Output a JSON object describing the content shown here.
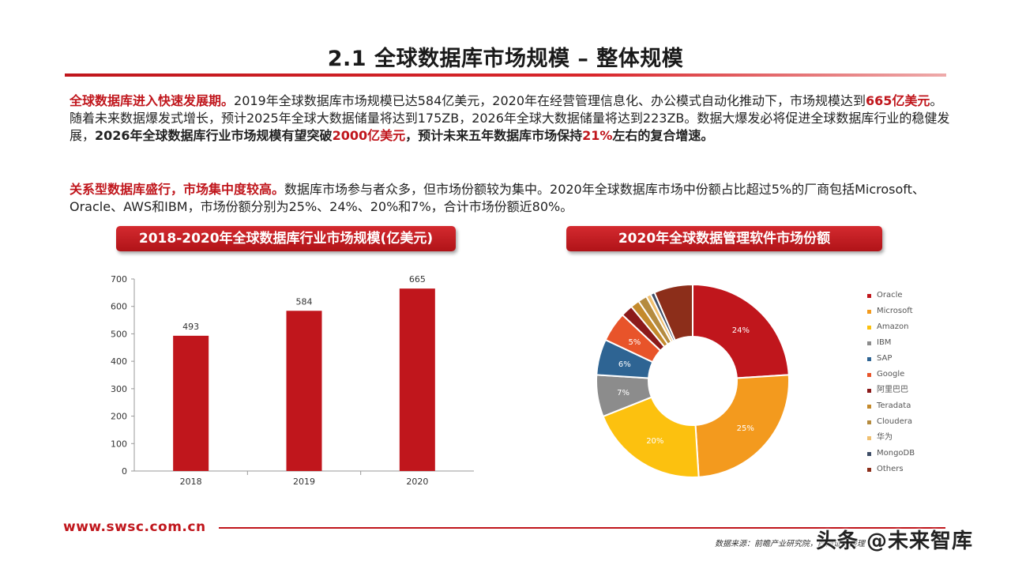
{
  "title": "2.1 全球数据库市场规模 – 整体规模",
  "para1": {
    "h": "全球数据库进入快速发展期。",
    "t1": "2019年全球数据库市场规模已达584亿美元，2020年在经营管理信息化、办公模式自动化推动下，市场规模达到",
    "r1": "665亿美元",
    "t2": "。随着未来数据爆发式增长，预计2025年全球大数据储量将达到175ZB，2026年全球大数据储量将达到223ZB。数据大爆发必将促进全球数据库行业的稳健发展，",
    "b1": "2026年全球数据库行业市场规模有望突破",
    "r2": "2000亿美元",
    "b2": "，预计未来五年数据库市场保持",
    "r3": "21%",
    "b3": "左右的复合增速。"
  },
  "para2": {
    "h": "关系型数据库盛行，市场集中度较高。",
    "t": "数据库市场参与者众多，但市场份额较为集中。2020年全球数据库市场中份额占比超过5%的厂商包括Microsoft、Oracle、AWS和IBM，市场份额分别为25%、24%、20%和7%，合计市场份额近80%。"
  },
  "banner_left": "2018-2020年全球数据库行业市场规模(亿美元)",
  "banner_right": "2020年全球数据管理软件市场份额",
  "chart_data": [
    {
      "type": "bar",
      "title": "2018-2020年全球数据库行业市场规模(亿美元)",
      "categories": [
        "2018",
        "2019",
        "2020"
      ],
      "values": [
        493,
        584,
        665
      ],
      "ylim": [
        0,
        700
      ],
      "yticks": [
        0,
        100,
        200,
        300,
        400,
        500,
        600,
        700
      ],
      "color": "#c0161c",
      "xlabel": "",
      "ylabel": ""
    },
    {
      "type": "pie",
      "title": "2020年全球数据管理软件市场份额",
      "labels": [
        "Oracle",
        "Microsoft",
        "Amazon",
        "IBM",
        "SAP",
        "Google",
        "阿里巴巴",
        "Teradata",
        "Cloudera",
        "华为",
        "MongoDB",
        "Others"
      ],
      "values": [
        24,
        25,
        20,
        7,
        6,
        5,
        2,
        1.5,
        1.5,
        0.8,
        0.7,
        6.5
      ],
      "data_labels": [
        "24%",
        "25%",
        "20%",
        "7%",
        "6%",
        "5%",
        "",
        "",
        "",
        "",
        "",
        ""
      ],
      "colors": [
        "#c0161c",
        "#f39a1e",
        "#fcc10f",
        "#8c8c8c",
        "#2e6493",
        "#e8542a",
        "#8b1a1a",
        "#c48a2c",
        "#b58b3f",
        "#f0c070",
        "#3d4d66",
        "#8c2e1a"
      ]
    }
  ],
  "footer_url": "www.swsc.com.cn",
  "source": "数据来源：前瞻产业研究院，西南证券整理",
  "watermark": "头条 @未来智库"
}
